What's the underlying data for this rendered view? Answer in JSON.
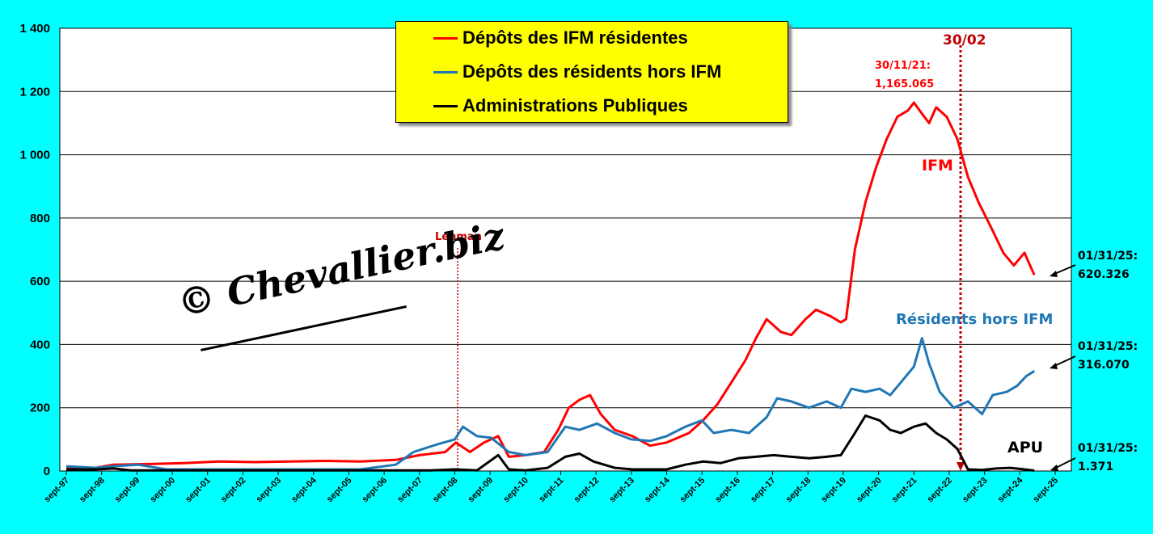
{
  "chart_data": {
    "type": "line",
    "y_ticks": [
      "0",
      "200",
      "400",
      "600",
      "800",
      "1 000",
      "1 200",
      "1 400"
    ],
    "ylim": [
      0,
      1400
    ],
    "grid": true,
    "x_ticks": [
      "sept-97",
      "sept-98",
      "sept-99",
      "sept-00",
      "sept-01",
      "sept-02",
      "sept-03",
      "sept-04",
      "sept-05",
      "sept-06",
      "sept-07",
      "sept-08",
      "sept-09",
      "sept-10",
      "sept-11",
      "sept-12",
      "sept-13",
      "sept-14",
      "sept-15",
      "sept-16",
      "sept-17",
      "sept-18",
      "sept-19",
      "sept-20",
      "sept-21",
      "sept-22",
      "sept-23",
      "sept-24",
      "sept-25"
    ],
    "legend_position": "top-center",
    "series": [
      {
        "name": "Dépôts des IFM résidentes",
        "color": "#FF0000",
        "points": [
          [
            1997.67,
            8
          ],
          [
            1998.5,
            10
          ],
          [
            1999,
            20
          ],
          [
            2000,
            22
          ],
          [
            2001,
            25
          ],
          [
            2002,
            30
          ],
          [
            2003,
            28
          ],
          [
            2004,
            30
          ],
          [
            2005,
            32
          ],
          [
            2006,
            30
          ],
          [
            2007,
            35
          ],
          [
            2007.67,
            50
          ],
          [
            2008.4,
            60
          ],
          [
            2008.7,
            90
          ],
          [
            2009.1,
            60
          ],
          [
            2009.5,
            90
          ],
          [
            2009.9,
            110
          ],
          [
            2010.2,
            45
          ],
          [
            2010.67,
            50
          ],
          [
            2011.2,
            60
          ],
          [
            2011.6,
            130
          ],
          [
            2011.9,
            200
          ],
          [
            2012.2,
            225
          ],
          [
            2012.5,
            240
          ],
          [
            2012.8,
            180
          ],
          [
            2013.2,
            130
          ],
          [
            2013.7,
            110
          ],
          [
            2014.2,
            80
          ],
          [
            2014.67,
            90
          ],
          [
            2015.3,
            120
          ],
          [
            2015.7,
            160
          ],
          [
            2016.1,
            210
          ],
          [
            2016.5,
            280
          ],
          [
            2016.9,
            350
          ],
          [
            2017.2,
            420
          ],
          [
            2017.5,
            480
          ],
          [
            2017.9,
            440
          ],
          [
            2018.2,
            430
          ],
          [
            2018.6,
            480
          ],
          [
            2018.9,
            510
          ],
          [
            2019.3,
            490
          ],
          [
            2019.6,
            470
          ],
          [
            2019.75,
            480
          ],
          [
            2020.0,
            700
          ],
          [
            2020.3,
            850
          ],
          [
            2020.6,
            960
          ],
          [
            2020.9,
            1050
          ],
          [
            2021.2,
            1120
          ],
          [
            2021.5,
            1140
          ],
          [
            2021.67,
            1165
          ],
          [
            2021.9,
            1130
          ],
          [
            2022.1,
            1100
          ],
          [
            2022.3,
            1150
          ],
          [
            2022.6,
            1120
          ],
          [
            2022.9,
            1050
          ],
          [
            2023.2,
            930
          ],
          [
            2023.5,
            850
          ],
          [
            2023.9,
            760
          ],
          [
            2024.2,
            690
          ],
          [
            2024.5,
            650
          ],
          [
            2024.8,
            690
          ],
          [
            2025.08,
            620
          ]
        ]
      },
      {
        "name": "Dépôts des résidents hors IFM",
        "color": "#1F77B4",
        "points": [
          [
            1997.67,
            15
          ],
          [
            1998.5,
            10
          ],
          [
            1999,
            15
          ],
          [
            1999.7,
            20
          ],
          [
            2000.5,
            5
          ],
          [
            2001,
            5
          ],
          [
            2002,
            5
          ],
          [
            2003,
            5
          ],
          [
            2004,
            5
          ],
          [
            2005,
            5
          ],
          [
            2006,
            5
          ],
          [
            2007,
            20
          ],
          [
            2007.5,
            60
          ],
          [
            2008.2,
            85
          ],
          [
            2008.67,
            100
          ],
          [
            2008.9,
            140
          ],
          [
            2009.3,
            110
          ],
          [
            2009.7,
            105
          ],
          [
            2010.2,
            60
          ],
          [
            2010.67,
            50
          ],
          [
            2011.3,
            60
          ],
          [
            2011.8,
            140
          ],
          [
            2012.2,
            130
          ],
          [
            2012.7,
            150
          ],
          [
            2013.2,
            120
          ],
          [
            2013.67,
            100
          ],
          [
            2014.2,
            95
          ],
          [
            2014.67,
            110
          ],
          [
            2015.2,
            140
          ],
          [
            2015.67,
            160
          ],
          [
            2016.0,
            120
          ],
          [
            2016.5,
            130
          ],
          [
            2017.0,
            120
          ],
          [
            2017.5,
            170
          ],
          [
            2017.8,
            230
          ],
          [
            2018.2,
            220
          ],
          [
            2018.7,
            200
          ],
          [
            2019.2,
            220
          ],
          [
            2019.6,
            200
          ],
          [
            2019.9,
            260
          ],
          [
            2020.3,
            250
          ],
          [
            2020.7,
            260
          ],
          [
            2021.0,
            240
          ],
          [
            2021.3,
            280
          ],
          [
            2021.67,
            330
          ],
          [
            2021.9,
            420
          ],
          [
            2022.1,
            340
          ],
          [
            2022.4,
            250
          ],
          [
            2022.8,
            200
          ],
          [
            2023.2,
            220
          ],
          [
            2023.6,
            180
          ],
          [
            2023.9,
            240
          ],
          [
            2024.3,
            250
          ],
          [
            2024.6,
            270
          ],
          [
            2024.85,
            300
          ],
          [
            2025.08,
            316
          ]
        ]
      },
      {
        "name": "Administrations Publiques",
        "color": "#000000",
        "points": [
          [
            1997.67,
            5
          ],
          [
            1998.5,
            5
          ],
          [
            1999,
            8
          ],
          [
            1999.5,
            2
          ],
          [
            2000,
            2
          ],
          [
            2001,
            2
          ],
          [
            2002,
            2
          ],
          [
            2003,
            2
          ],
          [
            2004,
            2
          ],
          [
            2005,
            2
          ],
          [
            2006,
            2
          ],
          [
            2007,
            2
          ],
          [
            2008,
            2
          ],
          [
            2008.67,
            5
          ],
          [
            2009.3,
            2
          ],
          [
            2009.9,
            50
          ],
          [
            2010.2,
            5
          ],
          [
            2010.67,
            2
          ],
          [
            2011.3,
            10
          ],
          [
            2011.8,
            45
          ],
          [
            2012.2,
            55
          ],
          [
            2012.6,
            30
          ],
          [
            2013.2,
            10
          ],
          [
            2013.7,
            5
          ],
          [
            2014.2,
            5
          ],
          [
            2014.67,
            5
          ],
          [
            2015.2,
            20
          ],
          [
            2015.7,
            30
          ],
          [
            2016.2,
            25
          ],
          [
            2016.7,
            40
          ],
          [
            2017.2,
            45
          ],
          [
            2017.7,
            50
          ],
          [
            2018.2,
            45
          ],
          [
            2018.7,
            40
          ],
          [
            2019.2,
            45
          ],
          [
            2019.6,
            50
          ],
          [
            2020.0,
            120
          ],
          [
            2020.3,
            175
          ],
          [
            2020.7,
            160
          ],
          [
            2021.0,
            130
          ],
          [
            2021.3,
            120
          ],
          [
            2021.67,
            140
          ],
          [
            2022.0,
            150
          ],
          [
            2022.3,
            120
          ],
          [
            2022.6,
            100
          ],
          [
            2022.9,
            70
          ],
          [
            2023.2,
            5
          ],
          [
            2023.6,
            3
          ],
          [
            2024.0,
            8
          ],
          [
            2024.4,
            10
          ],
          [
            2024.8,
            5
          ],
          [
            2025.08,
            1.4
          ]
        ]
      }
    ]
  },
  "legend": {
    "items": [
      {
        "label": "Dépôts des IFM résidentes",
        "color": "#FF0000"
      },
      {
        "label": "Dépôts des résidents hors IFM",
        "color": "#1F77B4"
      },
      {
        "label": "Administrations Publiques",
        "color": "#000000"
      }
    ]
  },
  "annotations": {
    "lehman": "Lehman",
    "marker_30_02": "30/02",
    "peak_date": "30/11/21:",
    "peak_value": "1,165.065",
    "ifm_label": "IFM",
    "residents_label": "Résidents hors IFM",
    "apu_label": "APU",
    "end_ifm_date": "01/31/25:",
    "end_ifm_value": "620.326",
    "end_res_date": "01/31/25:",
    "end_res_value": "316.070",
    "end_apu_date": "01/31/25:",
    "end_apu_value": "1.371",
    "watermark": "© Chevallier.biz"
  }
}
